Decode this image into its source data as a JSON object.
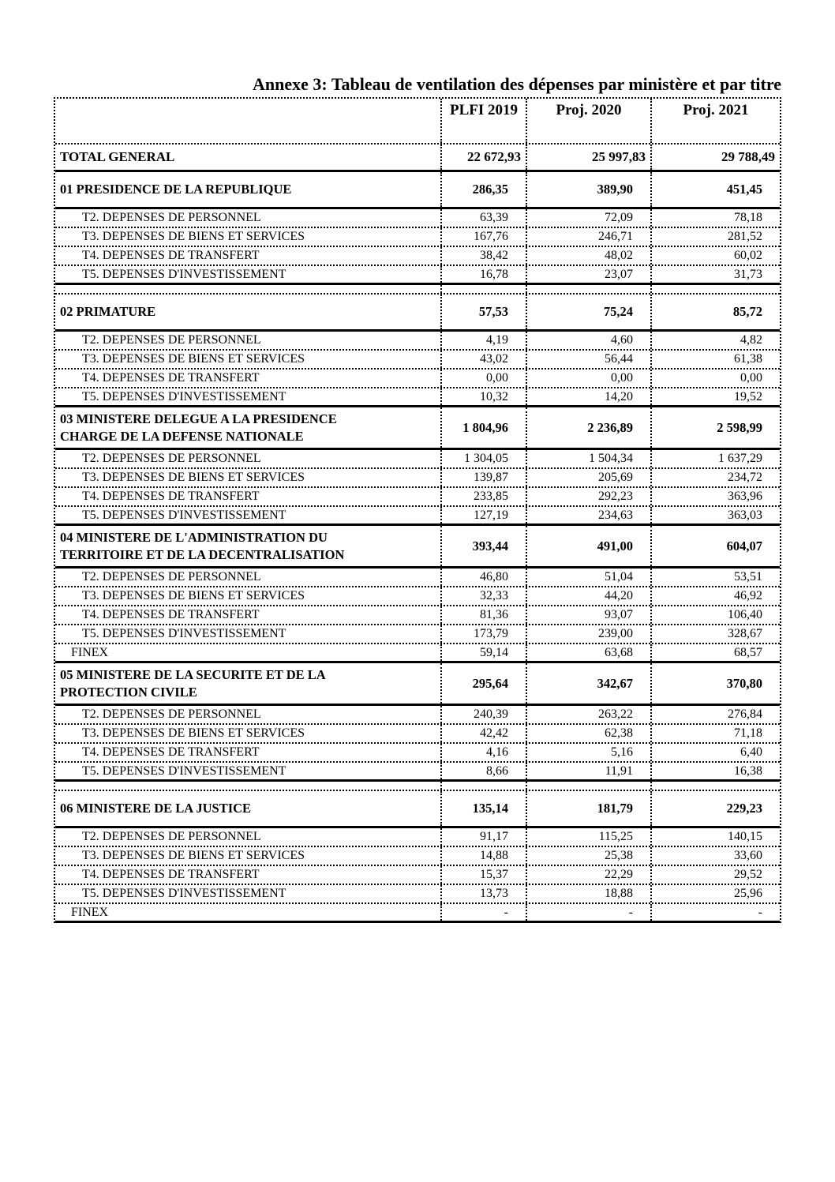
{
  "title": "Annexe 3: Tableau de ventilation des dépenses par ministère et par titre",
  "table": {
    "columns": [
      "PLFI 2019",
      "Proj. 2020",
      "Proj. 2021"
    ],
    "rows": [
      {
        "type": "total",
        "label": "TOTAL GENERAL",
        "values": [
          "22 672,93",
          "25 997,83",
          "29 788,49"
        ]
      },
      {
        "type": "section",
        "label": "01 PRESIDENCE DE LA REPUBLIQUE",
        "values": [
          "286,35",
          "389,90",
          "451,45"
        ]
      },
      {
        "type": "sub",
        "label": "T2. DEPENSES DE PERSONNEL",
        "values": [
          "63,39",
          "72,09",
          "78,18"
        ]
      },
      {
        "type": "sub",
        "label": "T3. DEPENSES DE BIENS ET SERVICES",
        "values": [
          "167,76",
          "246,71",
          "281,52"
        ]
      },
      {
        "type": "sub",
        "label": "T4. DEPENSES DE TRANSFERT",
        "values": [
          "38,42",
          "48,02",
          "60,02"
        ]
      },
      {
        "type": "sub",
        "label": "T5. DEPENSES D'INVESTISSEMENT",
        "values": [
          "16,78",
          "23,07",
          "31,73"
        ]
      },
      {
        "type": "spacer",
        "label": "",
        "values": [
          "",
          "",
          ""
        ]
      },
      {
        "type": "section",
        "label": "02 PRIMATURE",
        "values": [
          "57,53",
          "75,24",
          "85,72"
        ]
      },
      {
        "type": "sub",
        "label": "T2. DEPENSES DE PERSONNEL",
        "values": [
          "4,19",
          "4,60",
          "4,82"
        ]
      },
      {
        "type": "sub",
        "label": "T3. DEPENSES DE BIENS ET SERVICES",
        "values": [
          "43,02",
          "56,44",
          "61,38"
        ]
      },
      {
        "type": "sub",
        "label": "T4. DEPENSES DE TRANSFERT",
        "values": [
          "0,00",
          "0,00",
          "0,00"
        ]
      },
      {
        "type": "sub",
        "label": "T5. DEPENSES D'INVESTISSEMENT",
        "values": [
          "10,32",
          "14,20",
          "19,52"
        ]
      },
      {
        "type": "section",
        "label": "03 MINISTERE DELEGUE A LA PRESIDENCE\nCHARGE DE  LA DEFENSE NATIONALE",
        "values": [
          "1 804,96",
          "2 236,89",
          "2 598,99"
        ]
      },
      {
        "type": "sub",
        "label": "T2. DEPENSES DE PERSONNEL",
        "values": [
          "1 304,05",
          "1 504,34",
          "1 637,29"
        ]
      },
      {
        "type": "sub",
        "label": "T3. DEPENSES DE BIENS ET SERVICES",
        "values": [
          "139,87",
          "205,69",
          "234,72"
        ]
      },
      {
        "type": "sub",
        "label": "T4. DEPENSES DE TRANSFERT",
        "values": [
          "233,85",
          "292,23",
          "363,96"
        ]
      },
      {
        "type": "sub",
        "label": "T5. DEPENSES D'INVESTISSEMENT",
        "values": [
          "127,19",
          "234,63",
          "363,03"
        ]
      },
      {
        "type": "section",
        "label": "04 MINISTERE DE L'ADMINISTRATION DU\nTERRITOIRE ET DE LA DECENTRALISATION",
        "values": [
          "393,44",
          "491,00",
          "604,07"
        ]
      },
      {
        "type": "sub",
        "label": "T2. DEPENSES DE PERSONNEL",
        "values": [
          "46,80",
          "51,04",
          "53,51"
        ]
      },
      {
        "type": "sub",
        "label": "T3. DEPENSES DE BIENS ET SERVICES",
        "values": [
          "32,33",
          "44,20",
          "46,92"
        ]
      },
      {
        "type": "sub",
        "label": "T4. DEPENSES DE TRANSFERT",
        "values": [
          "81,36",
          "93,07",
          "106,40"
        ]
      },
      {
        "type": "sub",
        "label": "T5. DEPENSES D'INVESTISSEMENT",
        "values": [
          "173,79",
          "239,00",
          "328,67"
        ]
      },
      {
        "type": "finex",
        "label": "FINEX",
        "values": [
          "59,14",
          "63,68",
          "68,57"
        ]
      },
      {
        "type": "section",
        "label": "05 MINISTERE DE LA SECURITE ET DE LA\nPROTECTION CIVILE",
        "values": [
          "295,64",
          "342,67",
          "370,80"
        ]
      },
      {
        "type": "sub",
        "label": "T2. DEPENSES DE PERSONNEL",
        "values": [
          "240,39",
          "263,22",
          "276,84"
        ]
      },
      {
        "type": "sub",
        "label": "T3. DEPENSES DE BIENS ET SERVICES",
        "values": [
          "42,42",
          "62,38",
          "71,18"
        ]
      },
      {
        "type": "sub",
        "label": "T4. DEPENSES DE TRANSFERT",
        "values": [
          "4,16",
          "5,16",
          "6,40"
        ]
      },
      {
        "type": "sub",
        "label": "T5. DEPENSES D'INVESTISSEMENT",
        "values": [
          "8,66",
          "11,91",
          "16,38"
        ]
      },
      {
        "type": "spacer",
        "label": "",
        "values": [
          "",
          "",
          ""
        ]
      },
      {
        "type": "section",
        "label": "06 MINISTERE DE LA JUSTICE",
        "values": [
          "135,14",
          "181,79",
          "229,23"
        ]
      },
      {
        "type": "sub",
        "label": "T2. DEPENSES DE PERSONNEL",
        "values": [
          "91,17",
          "115,25",
          "140,15"
        ]
      },
      {
        "type": "sub",
        "label": "T3. DEPENSES DE BIENS ET SERVICES",
        "values": [
          "14,88",
          "25,38",
          "33,60"
        ]
      },
      {
        "type": "sub",
        "label": "T4. DEPENSES DE TRANSFERT",
        "values": [
          "15,37",
          "22,29",
          "29,52"
        ]
      },
      {
        "type": "sub",
        "label": "T5. DEPENSES D'INVESTISSEMENT",
        "values": [
          "13,73",
          "18,88",
          "25,96"
        ]
      },
      {
        "type": "finex",
        "label": "FINEX",
        "values": [
          "-",
          "-",
          "-"
        ]
      }
    ]
  }
}
